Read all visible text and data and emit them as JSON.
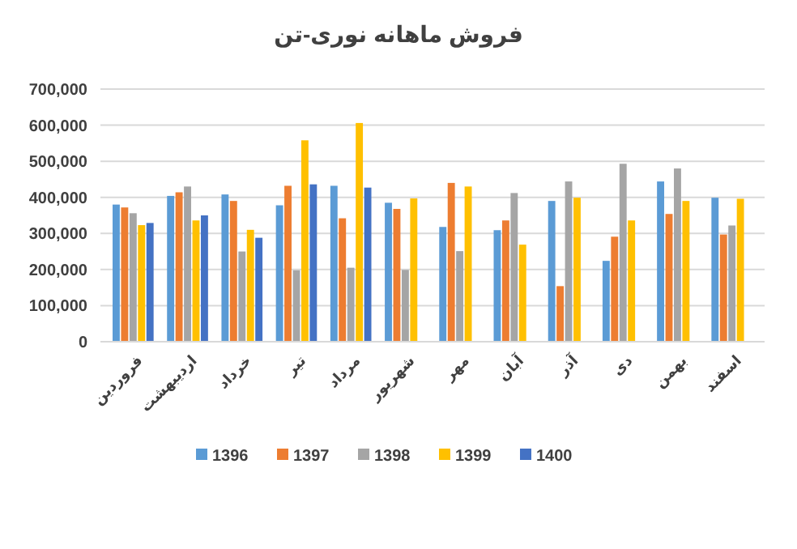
{
  "chart_data": {
    "type": "bar",
    "title": "فروش ماهانه نوری-تن",
    "categories": [
      "فروردین",
      "اردیبهشت",
      "خرداد",
      "تیر",
      "مرداد",
      "شهریور",
      "مهر",
      "آبان",
      "آذر",
      "دی",
      "بهمن",
      "اسفند"
    ],
    "series": [
      {
        "name": "1396",
        "color": "#5b9bd5",
        "values": [
          380000,
          404000,
          408000,
          378000,
          432000,
          385000,
          318000,
          309000,
          390000,
          224000,
          444000,
          399000
        ]
      },
      {
        "name": "1397",
        "color": "#ed7d31",
        "values": [
          372000,
          414000,
          390000,
          432000,
          342000,
          368000,
          440000,
          336000,
          154000,
          291000,
          354000,
          297000
        ]
      },
      {
        "name": "1398",
        "color": "#a5a5a5",
        "values": [
          356000,
          430000,
          250000,
          198000,
          205000,
          199000,
          251000,
          412000,
          444000,
          493000,
          480000,
          322000
        ]
      },
      {
        "name": "1399",
        "color": "#ffc000",
        "values": [
          323000,
          336000,
          310000,
          558000,
          606000,
          397000,
          430000,
          269000,
          399000,
          336000,
          390000,
          396000
        ]
      },
      {
        "name": "1400",
        "color": "#4472c4",
        "values": [
          329000,
          350000,
          288000,
          436000,
          427000,
          null,
          null,
          null,
          null,
          null,
          null,
          null
        ]
      }
    ],
    "ylim": [
      0,
      700000
    ],
    "yticks": [
      {
        "value": 0,
        "label": "0"
      },
      {
        "value": 100000,
        "label": "100,000"
      },
      {
        "value": 200000,
        "label": "200,000"
      },
      {
        "value": 300000,
        "label": "300,000"
      },
      {
        "value": 400000,
        "label": "400,000"
      },
      {
        "value": 500000,
        "label": "500,000"
      },
      {
        "value": 600000,
        "label": "600,000"
      },
      {
        "value": 700000,
        "label": "700,000"
      }
    ],
    "grid": "y",
    "legend": "bottom"
  }
}
